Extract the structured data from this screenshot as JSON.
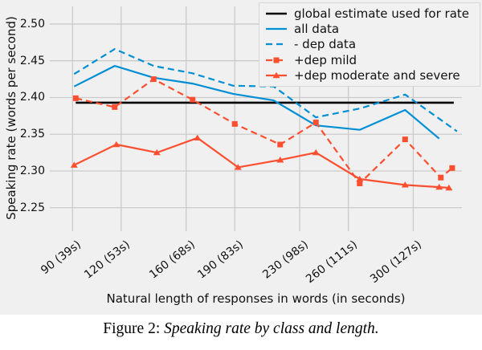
{
  "figure": {
    "xlabel": "Natural length of responses in words (in seconds)",
    "ylabel": "Speaking rate (words per second)"
  },
  "caption": {
    "prefix": "Figure 2: ",
    "title": "Speaking rate by class and length."
  },
  "colors": {
    "background": "#f0f0f0",
    "grid": "#cbcbcb",
    "blue": "#008fd5",
    "red": "#fc4f30",
    "black": "#000000"
  },
  "chart_data": {
    "type": "line",
    "title": "",
    "xlabel": "Natural length of responses in words (in seconds)",
    "ylabel": "Speaking rate (words per second)",
    "x_unit": "response length in words",
    "xlim": [
      76,
      330
    ],
    "ylim": [
      2.218,
      2.524
    ],
    "grid": true,
    "legend_position": "upper right",
    "x_ticks": [
      {
        "value": 90,
        "label": "90 (39s)"
      },
      {
        "value": 120,
        "label": "120 (53s)"
      },
      {
        "value": 160,
        "label": "160 (68s)"
      },
      {
        "value": 190,
        "label": "190 (83s)"
      },
      {
        "value": 230,
        "label": "230 (98s)"
      },
      {
        "value": 260,
        "label": "260 (111s)"
      },
      {
        "value": 300,
        "label": "300 (127s)"
      }
    ],
    "y_ticks": [
      2.25,
      2.3,
      2.35,
      2.4,
      2.45,
      2.5
    ],
    "series": [
      {
        "name": "global estimate used for rate",
        "color": "#000000",
        "line": "solid",
        "marker": "none",
        "width": 2.6,
        "x": [
          92,
          325
        ],
        "y": [
          2.393,
          2.393
        ]
      },
      {
        "name": "all data",
        "color": "#008fd5",
        "line": "solid",
        "marker": "none",
        "width": 2.2,
        "x": [
          91,
          116,
          140,
          164,
          189,
          214,
          240,
          267,
          295,
          316
        ],
        "y": [
          2.415,
          2.443,
          2.427,
          2.419,
          2.405,
          2.396,
          2.362,
          2.356,
          2.383,
          2.344
        ]
      },
      {
        "name": "- dep data",
        "color": "#008fd5",
        "line": "dashed",
        "marker": "none",
        "width": 2.2,
        "x": [
          91,
          116,
          140,
          164,
          189,
          214,
          240,
          267,
          295,
          327
        ],
        "y": [
          2.432,
          2.466,
          2.443,
          2.433,
          2.416,
          2.415,
          2.373,
          2.385,
          2.404,
          2.354
        ]
      },
      {
        "name": "+dep mild",
        "color": "#fc4f30",
        "line": "dashed",
        "marker": "square",
        "width": 2.2,
        "x": [
          92,
          116,
          140,
          164,
          190,
          218,
          240,
          267,
          295,
          317,
          324
        ],
        "y": [
          2.399,
          2.387,
          2.425,
          2.397,
          2.364,
          2.336,
          2.366,
          2.283,
          2.343,
          2.291,
          2.304
        ]
      },
      {
        "name": "+dep moderate and severe",
        "color": "#fc4f30",
        "line": "solid",
        "marker": "triangle",
        "width": 2.2,
        "x": [
          91,
          117,
          142,
          167,
          192,
          218,
          240,
          267,
          295,
          316,
          322
        ],
        "y": [
          2.308,
          2.336,
          2.325,
          2.345,
          2.305,
          2.315,
          2.325,
          2.289,
          2.281,
          2.278,
          2.277
        ]
      }
    ]
  }
}
